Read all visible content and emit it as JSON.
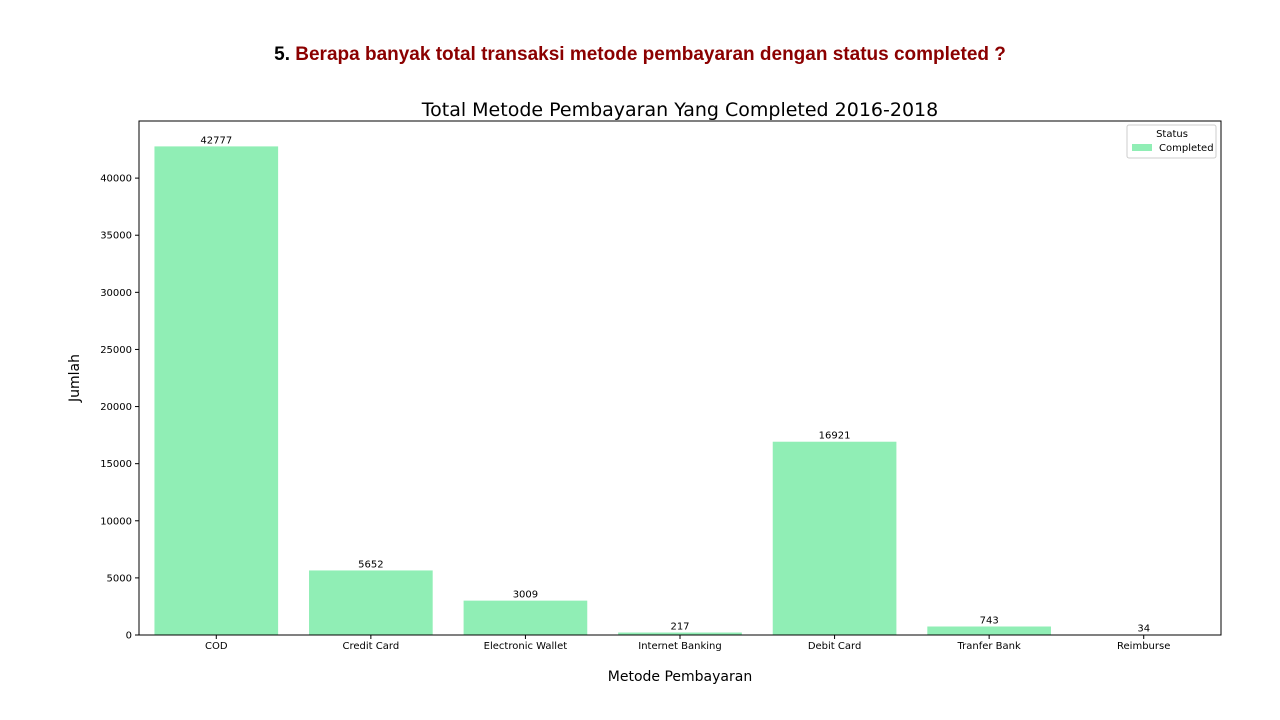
{
  "heading": {
    "number": "5.",
    "question": "Berapa banyak total transaksi metode pembayaran dengan status completed ?"
  },
  "colors": {
    "bar": "#90eeb5",
    "heading_question": "#8b0000"
  },
  "chart_data": {
    "type": "bar",
    "title": "Total Metode Pembayaran Yang Completed 2016-2018",
    "xlabel": "Metode Pembayaran",
    "ylabel": "Jumlah",
    "categories": [
      "COD",
      "Credit Card",
      "Electronic Wallet",
      "Internet Banking",
      "Debit Card",
      "Tranfer Bank",
      "Reimburse"
    ],
    "series": [
      {
        "name": "Completed",
        "values": [
          42777,
          5652,
          3009,
          217,
          16921,
          743,
          34
        ]
      }
    ],
    "ylim": [
      0,
      45000
    ],
    "yticks": [
      0,
      5000,
      10000,
      15000,
      20000,
      25000,
      30000,
      35000,
      40000
    ],
    "grid": false,
    "legend": {
      "title": "Status",
      "placement": "top-right"
    }
  }
}
